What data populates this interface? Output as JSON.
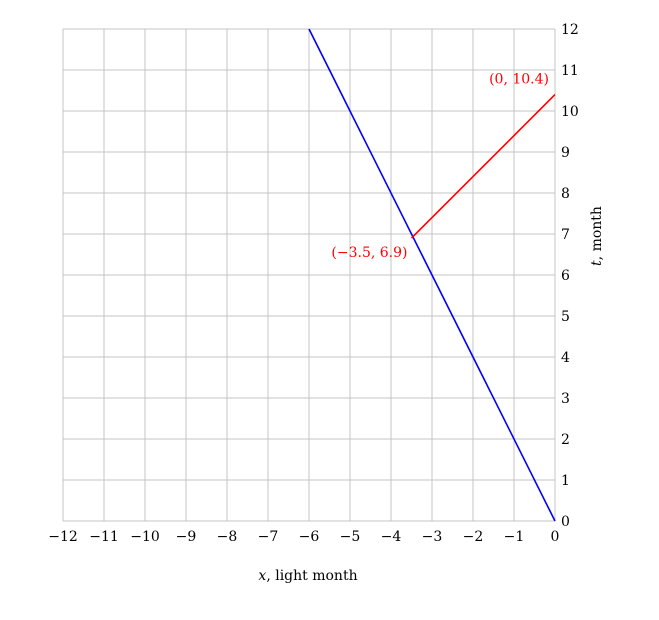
{
  "chart_data": {
    "type": "line",
    "xlabel_var": "x",
    "xlabel_unit": ", light month",
    "ylabel_var": "t",
    "ylabel_unit": ", month",
    "xlim": [
      -12,
      0
    ],
    "ylim": [
      0,
      12
    ],
    "x_ticks": [
      -12,
      -11,
      -10,
      -9,
      -8,
      -7,
      -6,
      -5,
      -4,
      -3,
      -2,
      -1,
      0
    ],
    "y_ticks": [
      0,
      1,
      2,
      3,
      4,
      5,
      6,
      7,
      8,
      9,
      10,
      11,
      12
    ],
    "grid": true,
    "y_axis_side": "right",
    "series": [
      {
        "color": "#0000ff",
        "points": [
          [
            0,
            0
          ],
          [
            -6,
            12
          ]
        ]
      },
      {
        "color": "#ff0000",
        "points": [
          [
            -3.5,
            6.9
          ],
          [
            0,
            10.4
          ]
        ]
      }
    ],
    "annotations": [
      {
        "text": "(−3.5, 6.9)",
        "x": -3.5,
        "y": 6.9,
        "color": "#ff0000"
      },
      {
        "text": "(0, 10.4)",
        "x": 0,
        "y": 10.4,
        "color": "#ff0000"
      }
    ]
  }
}
